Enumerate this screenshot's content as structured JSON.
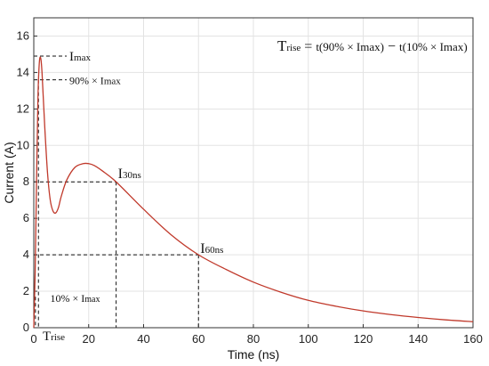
{
  "chart_data": {
    "type": "line",
    "xlabel": "Time (ns)",
    "ylabel": "Current (A)",
    "xlim": [
      0,
      160
    ],
    "ylim": [
      0,
      17
    ],
    "xticks": [
      0,
      20,
      40,
      60,
      80,
      100,
      120,
      140,
      160
    ],
    "yticks": [
      0,
      2,
      4,
      6,
      8,
      10,
      12,
      14,
      16
    ],
    "grid": true,
    "line_color": "#c0392b",
    "series": [
      {
        "values": [
          [
            0,
            0
          ],
          [
            0.5,
            3.0
          ],
          [
            1.0,
            8.0
          ],
          [
            1.5,
            12.5
          ],
          [
            2.0,
            14.5
          ],
          [
            2.5,
            14.8
          ],
          [
            3.0,
            14.0
          ],
          [
            4.0,
            11.0
          ],
          [
            5.0,
            8.5
          ],
          [
            6.0,
            7.0
          ],
          [
            7.0,
            6.4
          ],
          [
            8.0,
            6.3
          ],
          [
            9.0,
            6.6
          ],
          [
            10.0,
            7.2
          ],
          [
            12.0,
            8.1
          ],
          [
            15.0,
            8.8
          ],
          [
            18.0,
            9.0
          ],
          [
            20.0,
            9.0
          ],
          [
            22.0,
            8.9
          ],
          [
            25.0,
            8.6
          ],
          [
            30.0,
            8.0
          ],
          [
            40.0,
            6.5
          ],
          [
            50.0,
            5.1
          ],
          [
            60.0,
            4.0
          ],
          [
            70.0,
            3.2
          ],
          [
            80.0,
            2.5
          ],
          [
            90.0,
            1.95
          ],
          [
            100.0,
            1.5
          ],
          [
            110.0,
            1.18
          ],
          [
            120.0,
            0.92
          ],
          [
            130.0,
            0.72
          ],
          [
            140.0,
            0.56
          ],
          [
            150.0,
            0.43
          ],
          [
            160.0,
            0.33
          ]
        ]
      }
    ],
    "reference_levels": {
      "imax": 14.9,
      "i90": 13.6,
      "i10": 1.7,
      "i30": 8.0,
      "i60": 4.0
    },
    "reference_times": {
      "t90": 1.7,
      "t10": 0.6,
      "t30": 30,
      "t60": 60
    },
    "annotations": {
      "imax": {
        "main": "I",
        "sub": "max"
      },
      "i90": {
        "main": "90% × I",
        "sub": "max"
      },
      "i10": {
        "main": "10% × I",
        "sub": "max"
      },
      "i30": {
        "main": "I",
        "sub": "30ns"
      },
      "i60": {
        "main": "I",
        "sub": "60ns"
      },
      "trise": {
        "main": "T",
        "sub": "rise"
      },
      "formula_lhs": {
        "main": "T",
        "sub": "rise"
      },
      "formula_eq": "=",
      "formula_t1": "t(90% × Imax)",
      "formula_minus": "−",
      "formula_t2": "t(10% × Imax)"
    }
  }
}
